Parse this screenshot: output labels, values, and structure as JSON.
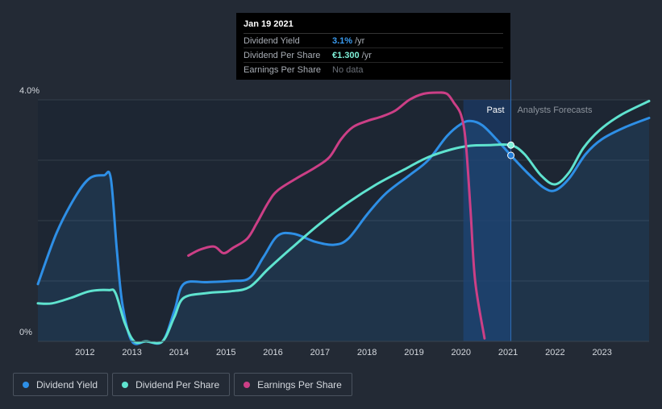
{
  "tooltip": {
    "date": "Jan 19 2021",
    "rows": [
      {
        "label": "Dividend Yield",
        "value": "3.1%",
        "unit": "/yr",
        "color": "#3a9bf0"
      },
      {
        "label": "Dividend Per Share",
        "value": "€1.300",
        "unit": "/yr",
        "color": "#7ff0d8"
      },
      {
        "label": "Earnings Per Share",
        "value": "No data",
        "unit": "",
        "color": "#6b7078"
      }
    ]
  },
  "legend": [
    {
      "label": "Dividend Yield",
      "color": "#2e8fe6"
    },
    {
      "label": "Dividend Per Share",
      "color": "#5fe3cf"
    },
    {
      "label": "Earnings Per Share",
      "color": "#cc3f86"
    }
  ],
  "chart_data": {
    "type": "line",
    "ylim": [
      0,
      4.0
    ],
    "y_tick_labels": [
      "4.0%",
      "0%"
    ],
    "x_tick_labels": [
      "2012",
      "2013",
      "2014",
      "2015",
      "2016",
      "2017",
      "2018",
      "2019",
      "2020",
      "2021",
      "2022",
      "2023"
    ],
    "xlim": [
      2011.0,
      2024.0
    ],
    "past_label": "Past",
    "forecast_label": "Analysts Forecasts",
    "past_region": [
      2020.05,
      2021.06
    ],
    "marker_x": 2021.06,
    "series": [
      {
        "name": "Dividend Yield",
        "color": "#2e8fe6",
        "area": true,
        "points": [
          [
            2011.0,
            0.95
          ],
          [
            2011.4,
            1.8
          ],
          [
            2011.8,
            2.4
          ],
          [
            2012.1,
            2.7
          ],
          [
            2012.4,
            2.75
          ],
          [
            2012.55,
            2.7
          ],
          [
            2012.68,
            1.5
          ],
          [
            2012.8,
            0.6
          ],
          [
            2013.0,
            0.0
          ],
          [
            2013.3,
            0.0
          ],
          [
            2013.65,
            0.0
          ],
          [
            2013.9,
            0.5
          ],
          [
            2014.1,
            0.95
          ],
          [
            2014.6,
            0.98
          ],
          [
            2015.1,
            1.0
          ],
          [
            2015.5,
            1.05
          ],
          [
            2015.8,
            1.4
          ],
          [
            2016.1,
            1.75
          ],
          [
            2016.45,
            1.78
          ],
          [
            2016.9,
            1.65
          ],
          [
            2017.3,
            1.6
          ],
          [
            2017.6,
            1.7
          ],
          [
            2018.0,
            2.1
          ],
          [
            2018.4,
            2.45
          ],
          [
            2018.9,
            2.75
          ],
          [
            2019.3,
            3.0
          ],
          [
            2019.7,
            3.4
          ],
          [
            2020.0,
            3.6
          ],
          [
            2020.2,
            3.65
          ],
          [
            2020.45,
            3.58
          ],
          [
            2020.75,
            3.35
          ],
          [
            2021.06,
            3.08
          ],
          [
            2021.4,
            2.8
          ],
          [
            2021.75,
            2.55
          ],
          [
            2022.0,
            2.5
          ],
          [
            2022.3,
            2.7
          ],
          [
            2022.65,
            3.1
          ],
          [
            2023.0,
            3.35
          ],
          [
            2023.5,
            3.55
          ],
          [
            2024.0,
            3.7
          ]
        ]
      },
      {
        "name": "Dividend Per Share",
        "color": "#5fe3cf",
        "area": false,
        "points": [
          [
            2011.0,
            0.63
          ],
          [
            2011.3,
            0.63
          ],
          [
            2011.7,
            0.72
          ],
          [
            2012.1,
            0.83
          ],
          [
            2012.5,
            0.85
          ],
          [
            2012.65,
            0.8
          ],
          [
            2012.85,
            0.3
          ],
          [
            2013.05,
            0.0
          ],
          [
            2013.3,
            0.0
          ],
          [
            2013.65,
            0.0
          ],
          [
            2013.9,
            0.4
          ],
          [
            2014.1,
            0.72
          ],
          [
            2014.6,
            0.8
          ],
          [
            2015.1,
            0.83
          ],
          [
            2015.5,
            0.9
          ],
          [
            2015.9,
            1.2
          ],
          [
            2016.4,
            1.55
          ],
          [
            2017.0,
            1.95
          ],
          [
            2017.6,
            2.3
          ],
          [
            2018.2,
            2.6
          ],
          [
            2018.8,
            2.85
          ],
          [
            2019.3,
            3.05
          ],
          [
            2019.8,
            3.18
          ],
          [
            2020.2,
            3.24
          ],
          [
            2020.6,
            3.25
          ],
          [
            2021.06,
            3.25
          ],
          [
            2021.35,
            3.1
          ],
          [
            2021.7,
            2.75
          ],
          [
            2022.0,
            2.6
          ],
          [
            2022.3,
            2.8
          ],
          [
            2022.6,
            3.2
          ],
          [
            2022.95,
            3.5
          ],
          [
            2023.4,
            3.75
          ],
          [
            2024.0,
            3.98
          ]
        ]
      },
      {
        "name": "Earnings Per Share",
        "color": "#cc3f86",
        "area": false,
        "points": [
          [
            2014.2,
            1.42
          ],
          [
            2014.45,
            1.52
          ],
          [
            2014.75,
            1.57
          ],
          [
            2014.95,
            1.46
          ],
          [
            2015.15,
            1.55
          ],
          [
            2015.45,
            1.7
          ],
          [
            2015.65,
            1.95
          ],
          [
            2015.9,
            2.3
          ],
          [
            2016.1,
            2.5
          ],
          [
            2016.5,
            2.7
          ],
          [
            2016.9,
            2.88
          ],
          [
            2017.2,
            3.05
          ],
          [
            2017.45,
            3.35
          ],
          [
            2017.7,
            3.55
          ],
          [
            2018.0,
            3.65
          ],
          [
            2018.3,
            3.72
          ],
          [
            2018.6,
            3.82
          ],
          [
            2018.9,
            4.0
          ],
          [
            2019.2,
            4.1
          ],
          [
            2019.5,
            4.12
          ],
          [
            2019.7,
            4.1
          ],
          [
            2019.85,
            3.95
          ],
          [
            2020.0,
            3.75
          ],
          [
            2020.1,
            3.3
          ],
          [
            2020.2,
            2.2
          ],
          [
            2020.3,
            1.0
          ],
          [
            2020.5,
            0.05
          ]
        ]
      }
    ]
  }
}
